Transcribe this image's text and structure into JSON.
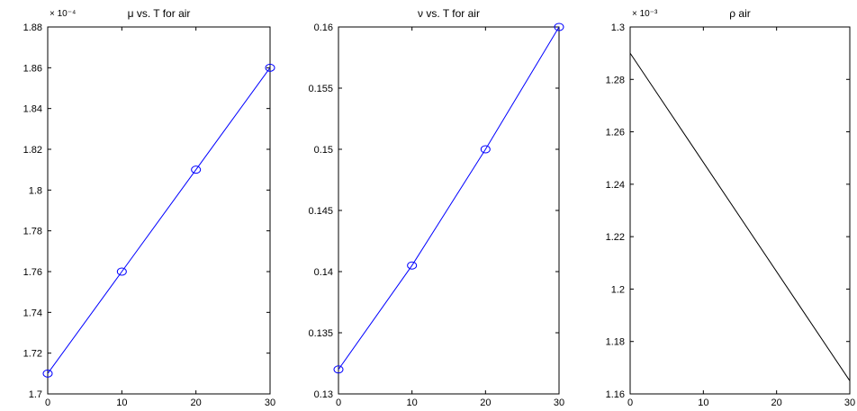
{
  "chart_data": [
    {
      "type": "line",
      "title": "μ vs. T for air",
      "exponent_label": "× 10⁻⁴",
      "x": [
        0,
        10,
        20,
        30
      ],
      "series": [
        {
          "values": [
            1.71,
            1.76,
            1.81,
            1.86
          ],
          "color": "#0000ff",
          "marker": "circle"
        }
      ],
      "xlim": [
        0,
        30
      ],
      "ylim": [
        1.7,
        1.88
      ],
      "xticks": [
        "0",
        "10",
        "20",
        "30"
      ],
      "yticks": [
        "1.7",
        "1.72",
        "1.74",
        "1.76",
        "1.78",
        "1.8",
        "1.82",
        "1.84",
        "1.86",
        "1.88"
      ],
      "grid": false
    },
    {
      "type": "line",
      "title": "ν vs. T for air",
      "exponent_label": "",
      "x": [
        0,
        10,
        20,
        30
      ],
      "series": [
        {
          "values": [
            0.132,
            0.1405,
            0.15,
            0.16
          ],
          "color": "#0000ff",
          "marker": "circle"
        }
      ],
      "xlim": [
        0,
        30
      ],
      "ylim": [
        0.13,
        0.16
      ],
      "xticks": [
        "0",
        "10",
        "20",
        "30"
      ],
      "yticks": [
        "0.13",
        "0.135",
        "0.14",
        "0.145",
        "0.15",
        "0.155",
        "0.16"
      ],
      "grid": false
    },
    {
      "type": "line",
      "title": "ρ air",
      "exponent_label": "× 10⁻³",
      "x": [
        0,
        30
      ],
      "series": [
        {
          "values": [
            1.29,
            1.165
          ],
          "color": "#000000",
          "marker": "none"
        }
      ],
      "xlim": [
        0,
        30
      ],
      "ylim": [
        1.16,
        1.3
      ],
      "xticks": [
        "0",
        "10",
        "20",
        "30"
      ],
      "yticks": [
        "1.16",
        "1.18",
        "1.2",
        "1.22",
        "1.24",
        "1.26",
        "1.28",
        "1.3"
      ],
      "grid": false
    }
  ]
}
